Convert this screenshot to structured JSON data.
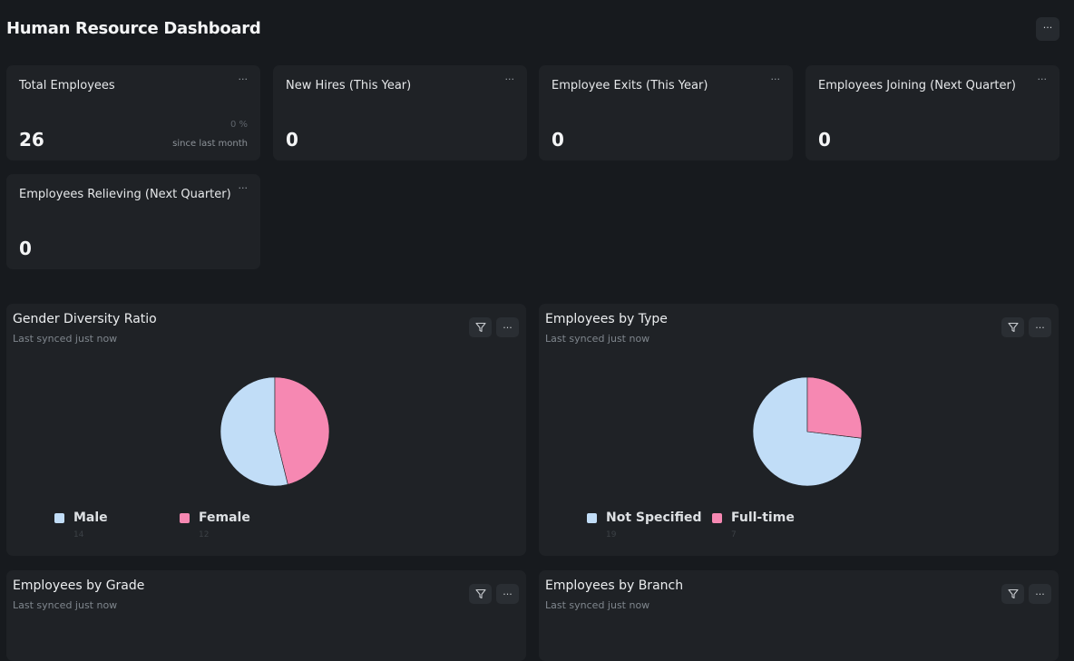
{
  "header": {
    "title": "Human Resource Dashboard",
    "menu_label": "···"
  },
  "cards": [
    {
      "title": "Total Employees",
      "value": "26",
      "change": "0 %",
      "since": "since last month"
    },
    {
      "title": "New Hires (This Year)",
      "value": "0"
    },
    {
      "title": "Employee Exits (This Year)",
      "value": "0"
    },
    {
      "title": "Employees Joining (Next Quarter)",
      "value": "0"
    },
    {
      "title": "Employees Relieving (Next Quarter)",
      "value": "0"
    }
  ],
  "card_menu_label": "···",
  "charts": [
    {
      "title": "Gender Diversity Ratio",
      "subtitle": "Last synced just now",
      "legend": [
        {
          "label": "Male",
          "count": "14",
          "color": "#c1ddf7"
        },
        {
          "label": "Female",
          "count": "12",
          "color": "#f688b2"
        }
      ]
    },
    {
      "title": "Employees by Type",
      "subtitle": "Last synced just now",
      "legend": [
        {
          "label": "Not Specified",
          "count": "19",
          "color": "#c1ddf7"
        },
        {
          "label": "Full-time",
          "count": "7",
          "color": "#f688b2"
        }
      ]
    },
    {
      "title": "Employees by Grade",
      "subtitle": "Last synced just now"
    },
    {
      "title": "Employees by Branch",
      "subtitle": "Last synced just now"
    }
  ],
  "chart_data": [
    {
      "type": "pie",
      "title": "Gender Diversity Ratio",
      "categories": [
        "Male",
        "Female"
      ],
      "values": [
        14,
        12
      ]
    },
    {
      "type": "pie",
      "title": "Employees by Type",
      "categories": [
        "Not Specified",
        "Full-time"
      ],
      "values": [
        19,
        7
      ]
    }
  ],
  "icons": {
    "filter": "filter-icon",
    "more": "more-icon"
  }
}
